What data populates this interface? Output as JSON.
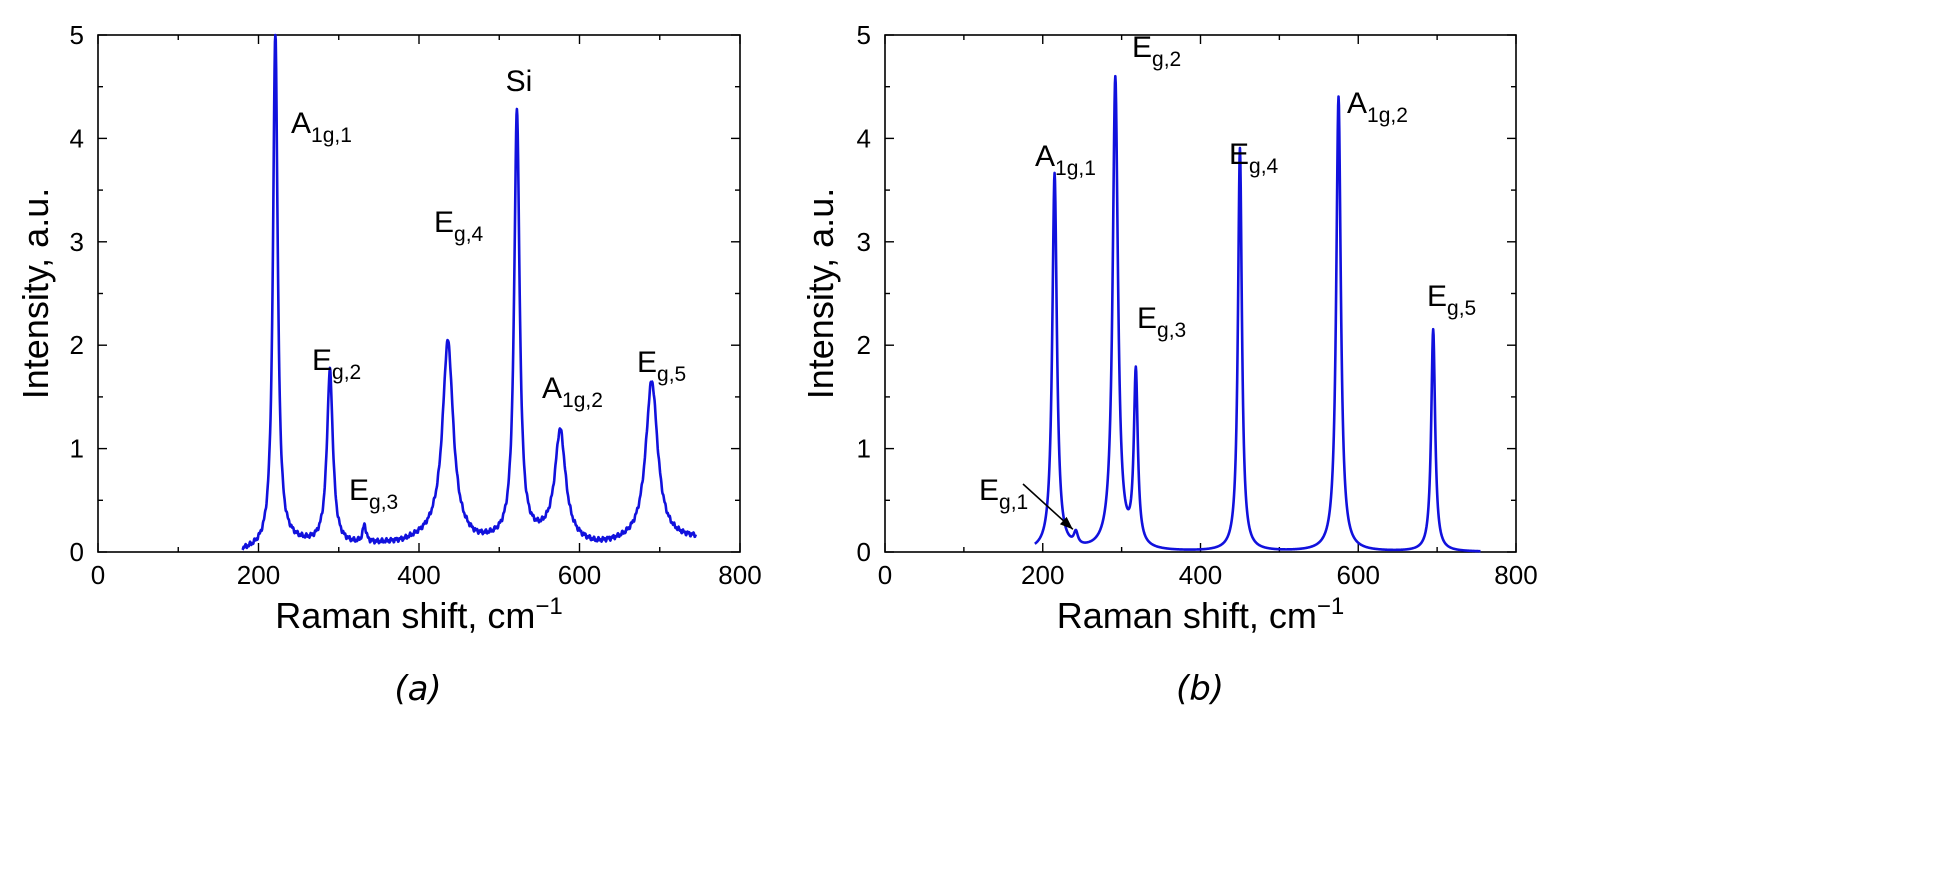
{
  "chart_data": [
    {
      "type": "line",
      "panel": "a",
      "caption": "(a)",
      "xlabel": "Raman shift, cm",
      "xlabel_sup": "−1",
      "ylabel": "Intensity, a.u.",
      "xlim": [
        0,
        800
      ],
      "ylim": [
        0,
        5
      ],
      "xticks": [
        0,
        200,
        400,
        600,
        800
      ],
      "yticks": [
        0,
        1,
        2,
        3,
        4,
        5
      ],
      "color": "#1111dd",
      "x_range": [
        180,
        745
      ],
      "baseline": [
        [
          180,
          0.0
        ],
        [
          210,
          0.02
        ],
        [
          240,
          0.08
        ],
        [
          300,
          0.05
        ],
        [
          380,
          0.08
        ],
        [
          420,
          0.15
        ],
        [
          470,
          0.08
        ],
        [
          560,
          0.12
        ],
        [
          620,
          0.05
        ],
        [
          660,
          0.08
        ],
        [
          745,
          0.12
        ]
      ],
      "peaks": [
        {
          "center": 221,
          "height": 5.0,
          "width": 3.5,
          "label": "A",
          "sub": "1g,1"
        },
        {
          "center": 289,
          "height": 1.68,
          "width": 4.5,
          "label": "E",
          "sub": "g,2"
        },
        {
          "center": 332,
          "height": 0.17,
          "width": 2.5,
          "label": "E",
          "sub": "g,3"
        },
        {
          "center": 436,
          "height": 1.9,
          "width": 8,
          "label": "E",
          "sub": "g,4"
        },
        {
          "center": 522,
          "height": 4.15,
          "width": 4,
          "label": "Si",
          "sub": ""
        },
        {
          "center": 576,
          "height": 1.05,
          "width": 8,
          "label": "A",
          "sub": "1g,2"
        },
        {
          "center": 690,
          "height": 1.55,
          "width": 9,
          "label": "E",
          "sub": "g,5"
        }
      ]
    },
    {
      "type": "line",
      "panel": "b",
      "caption": "(b)",
      "xlabel": "Raman shift, cm",
      "xlabel_sup": "−1",
      "ylabel": "Intensity, a.u.",
      "xlim": [
        0,
        800
      ],
      "ylim": [
        0,
        5
      ],
      "xticks": [
        0,
        200,
        400,
        600,
        800
      ],
      "yticks": [
        0,
        1,
        2,
        3,
        4,
        5
      ],
      "color": "#1111dd",
      "x_range": [
        190,
        755
      ],
      "baseline": [
        [
          190,
          0.0
        ],
        [
          755,
          0.0
        ]
      ],
      "peaks": [
        {
          "center": 215,
          "height": 3.65,
          "width": 3.5,
          "label": "A",
          "sub": "1g,1"
        },
        {
          "center": 242,
          "height": 0.12,
          "width": 3,
          "label": "E",
          "sub": "g,1"
        },
        {
          "center": 292,
          "height": 4.57,
          "width": 4,
          "label": "E",
          "sub": "g,2"
        },
        {
          "center": 318,
          "height": 1.68,
          "width": 3,
          "label": "E",
          "sub": "g,3"
        },
        {
          "center": 450,
          "height": 3.9,
          "width": 3,
          "label": "E",
          "sub": "g,4"
        },
        {
          "center": 575,
          "height": 4.4,
          "width": 3.5,
          "label": "A",
          "sub": "1g,2"
        },
        {
          "center": 695,
          "height": 2.15,
          "width": 3,
          "label": "E",
          "sub": "g,5"
        }
      ]
    }
  ]
}
